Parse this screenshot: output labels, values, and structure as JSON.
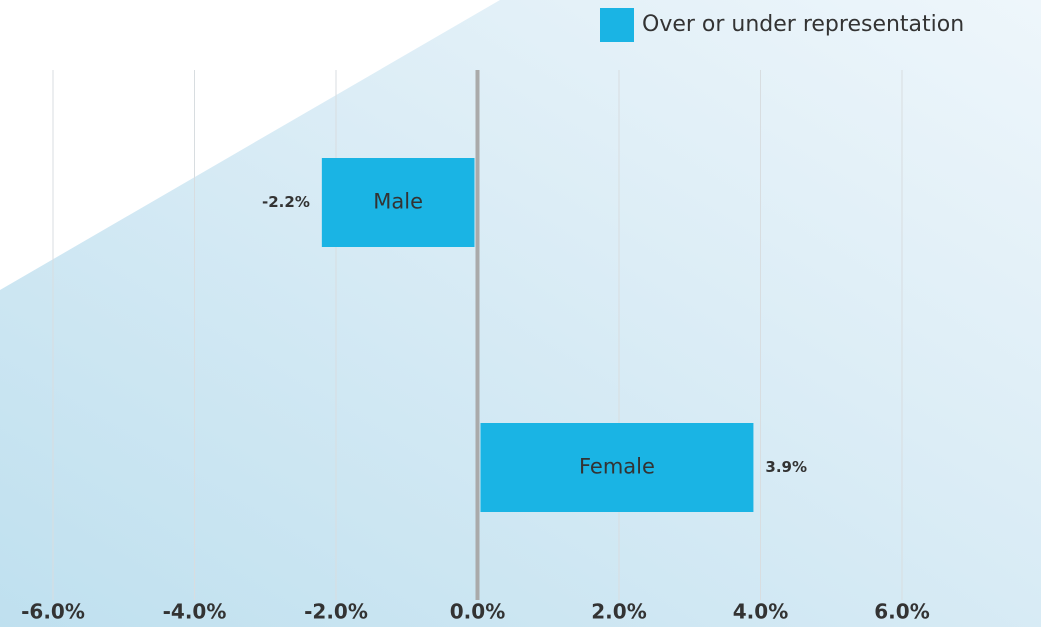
{
  "chart_data": {
    "type": "bar",
    "orientation": "horizontal",
    "categories": [
      "Male",
      "Female"
    ],
    "series": [
      {
        "name": "Over or under representation",
        "color": "#1ab4e4",
        "values": [
          -2.2,
          3.9
        ],
        "value_labels": [
          "-2.2%",
          "3.9%"
        ]
      }
    ],
    "xlim": [
      -6,
      6
    ],
    "xticks": [
      {
        "value": -6,
        "label": "-6.0%"
      },
      {
        "value": -4,
        "label": "-4.0%"
      },
      {
        "value": -2,
        "label": "-2.0%"
      },
      {
        "value": 0,
        "label": "0.0%"
      },
      {
        "value": 2,
        "label": "2.0%"
      },
      {
        "value": 4,
        "label": "4.0%"
      },
      {
        "value": 6,
        "label": "6.0%"
      }
    ],
    "grid": true,
    "legend": "top-right"
  }
}
